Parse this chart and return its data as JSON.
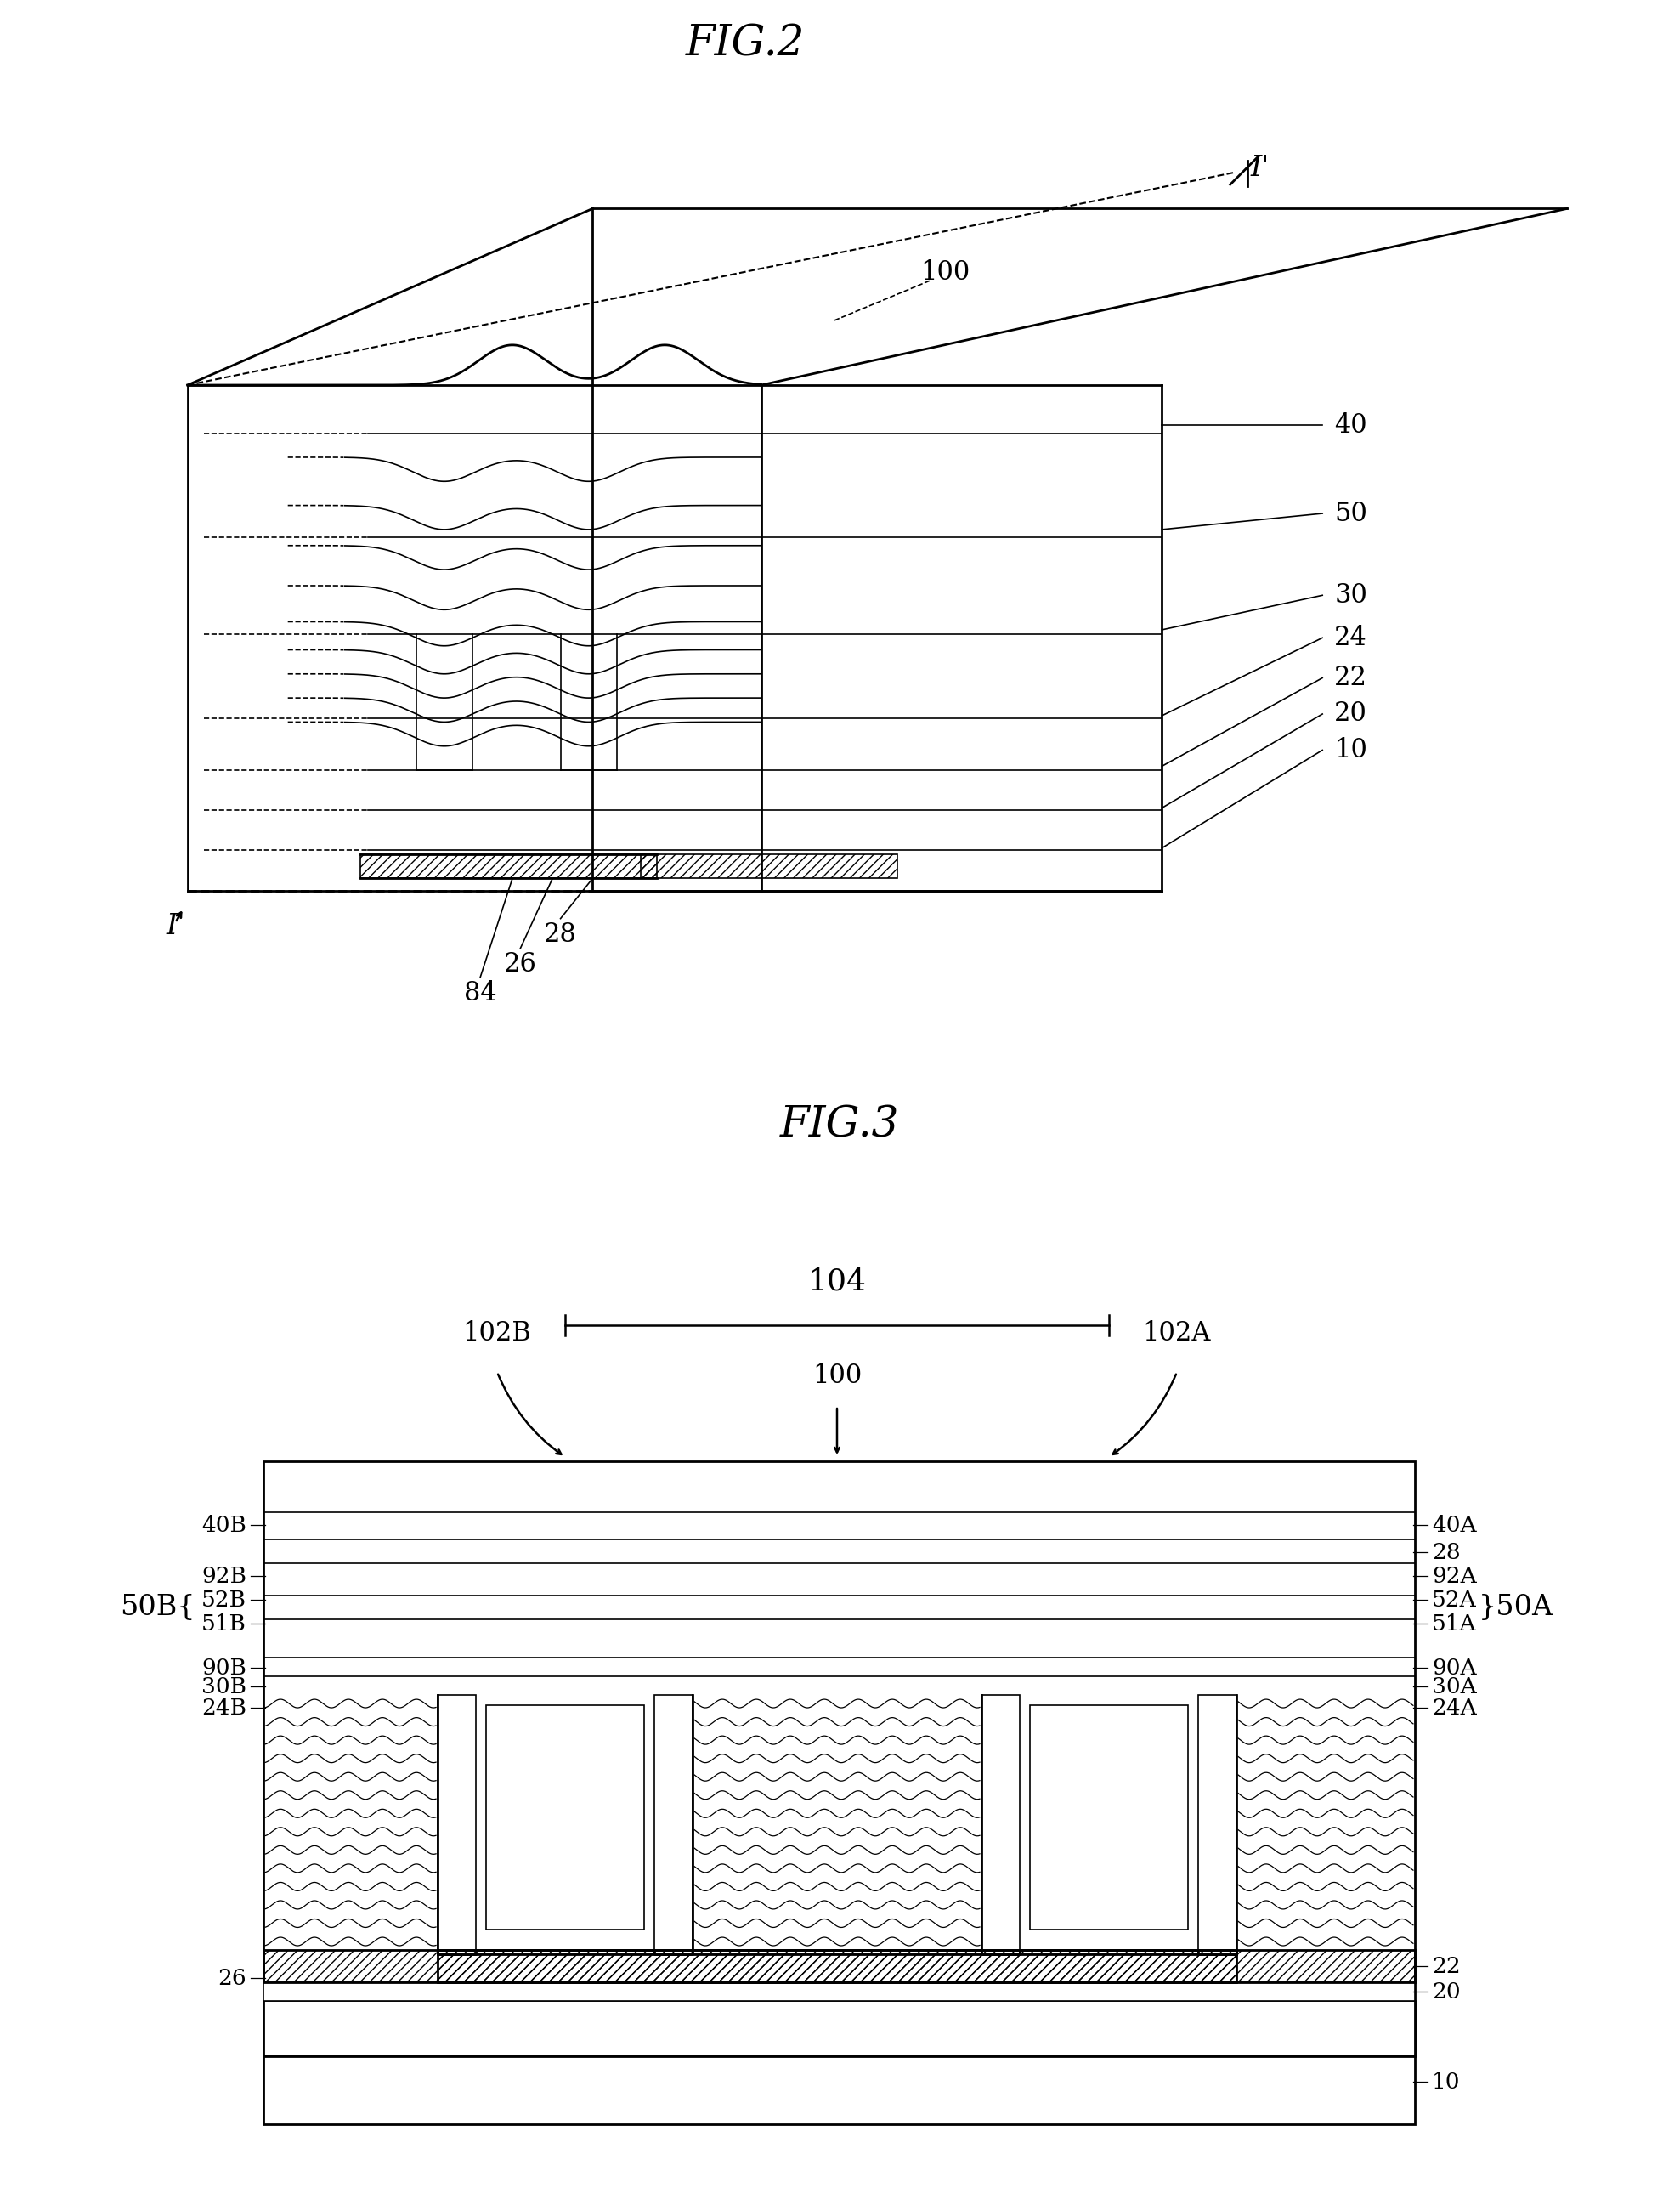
{
  "fig2_title": "FIG.2",
  "fig3_title": "FIG.3",
  "bg": "#ffffff",
  "lc": "#000000",
  "fig2_right_labels": [
    "40",
    "50",
    "30",
    "24",
    "22",
    "20",
    "10"
  ],
  "fig2_bottom_labels": [
    "28",
    "26",
    "84"
  ],
  "fig2_label_100": "100",
  "fig2_label_I": "I",
  "fig2_label_Ip": "I'",
  "fig3_label_104": "104",
  "fig3_label_102B": "102B",
  "fig3_label_102A": "102A",
  "fig3_label_100": "100",
  "fig3_left_labels": [
    [
      "40B",
      0
    ],
    [
      "92B",
      1
    ],
    [
      "52B",
      2
    ],
    [
      "51B",
      3
    ],
    [
      "90B",
      4
    ],
    [
      "30B",
      5
    ],
    [
      "24B",
      6
    ],
    [
      "26",
      7
    ]
  ],
  "fig3_right_labels": [
    [
      "40A",
      0
    ],
    [
      "28",
      1
    ],
    [
      "92A",
      2
    ],
    [
      "52A",
      3
    ],
    [
      "51A",
      4
    ],
    [
      "90A",
      5
    ],
    [
      "30A",
      6
    ],
    [
      "24A",
      7
    ],
    [
      "22",
      8
    ],
    [
      "20",
      9
    ],
    [
      "10",
      10
    ]
  ],
  "lw_main": 2.0,
  "lw_thin": 1.2,
  "lw_thick": 2.5,
  "font_title": 36,
  "font_label": 22,
  "font_small": 19
}
